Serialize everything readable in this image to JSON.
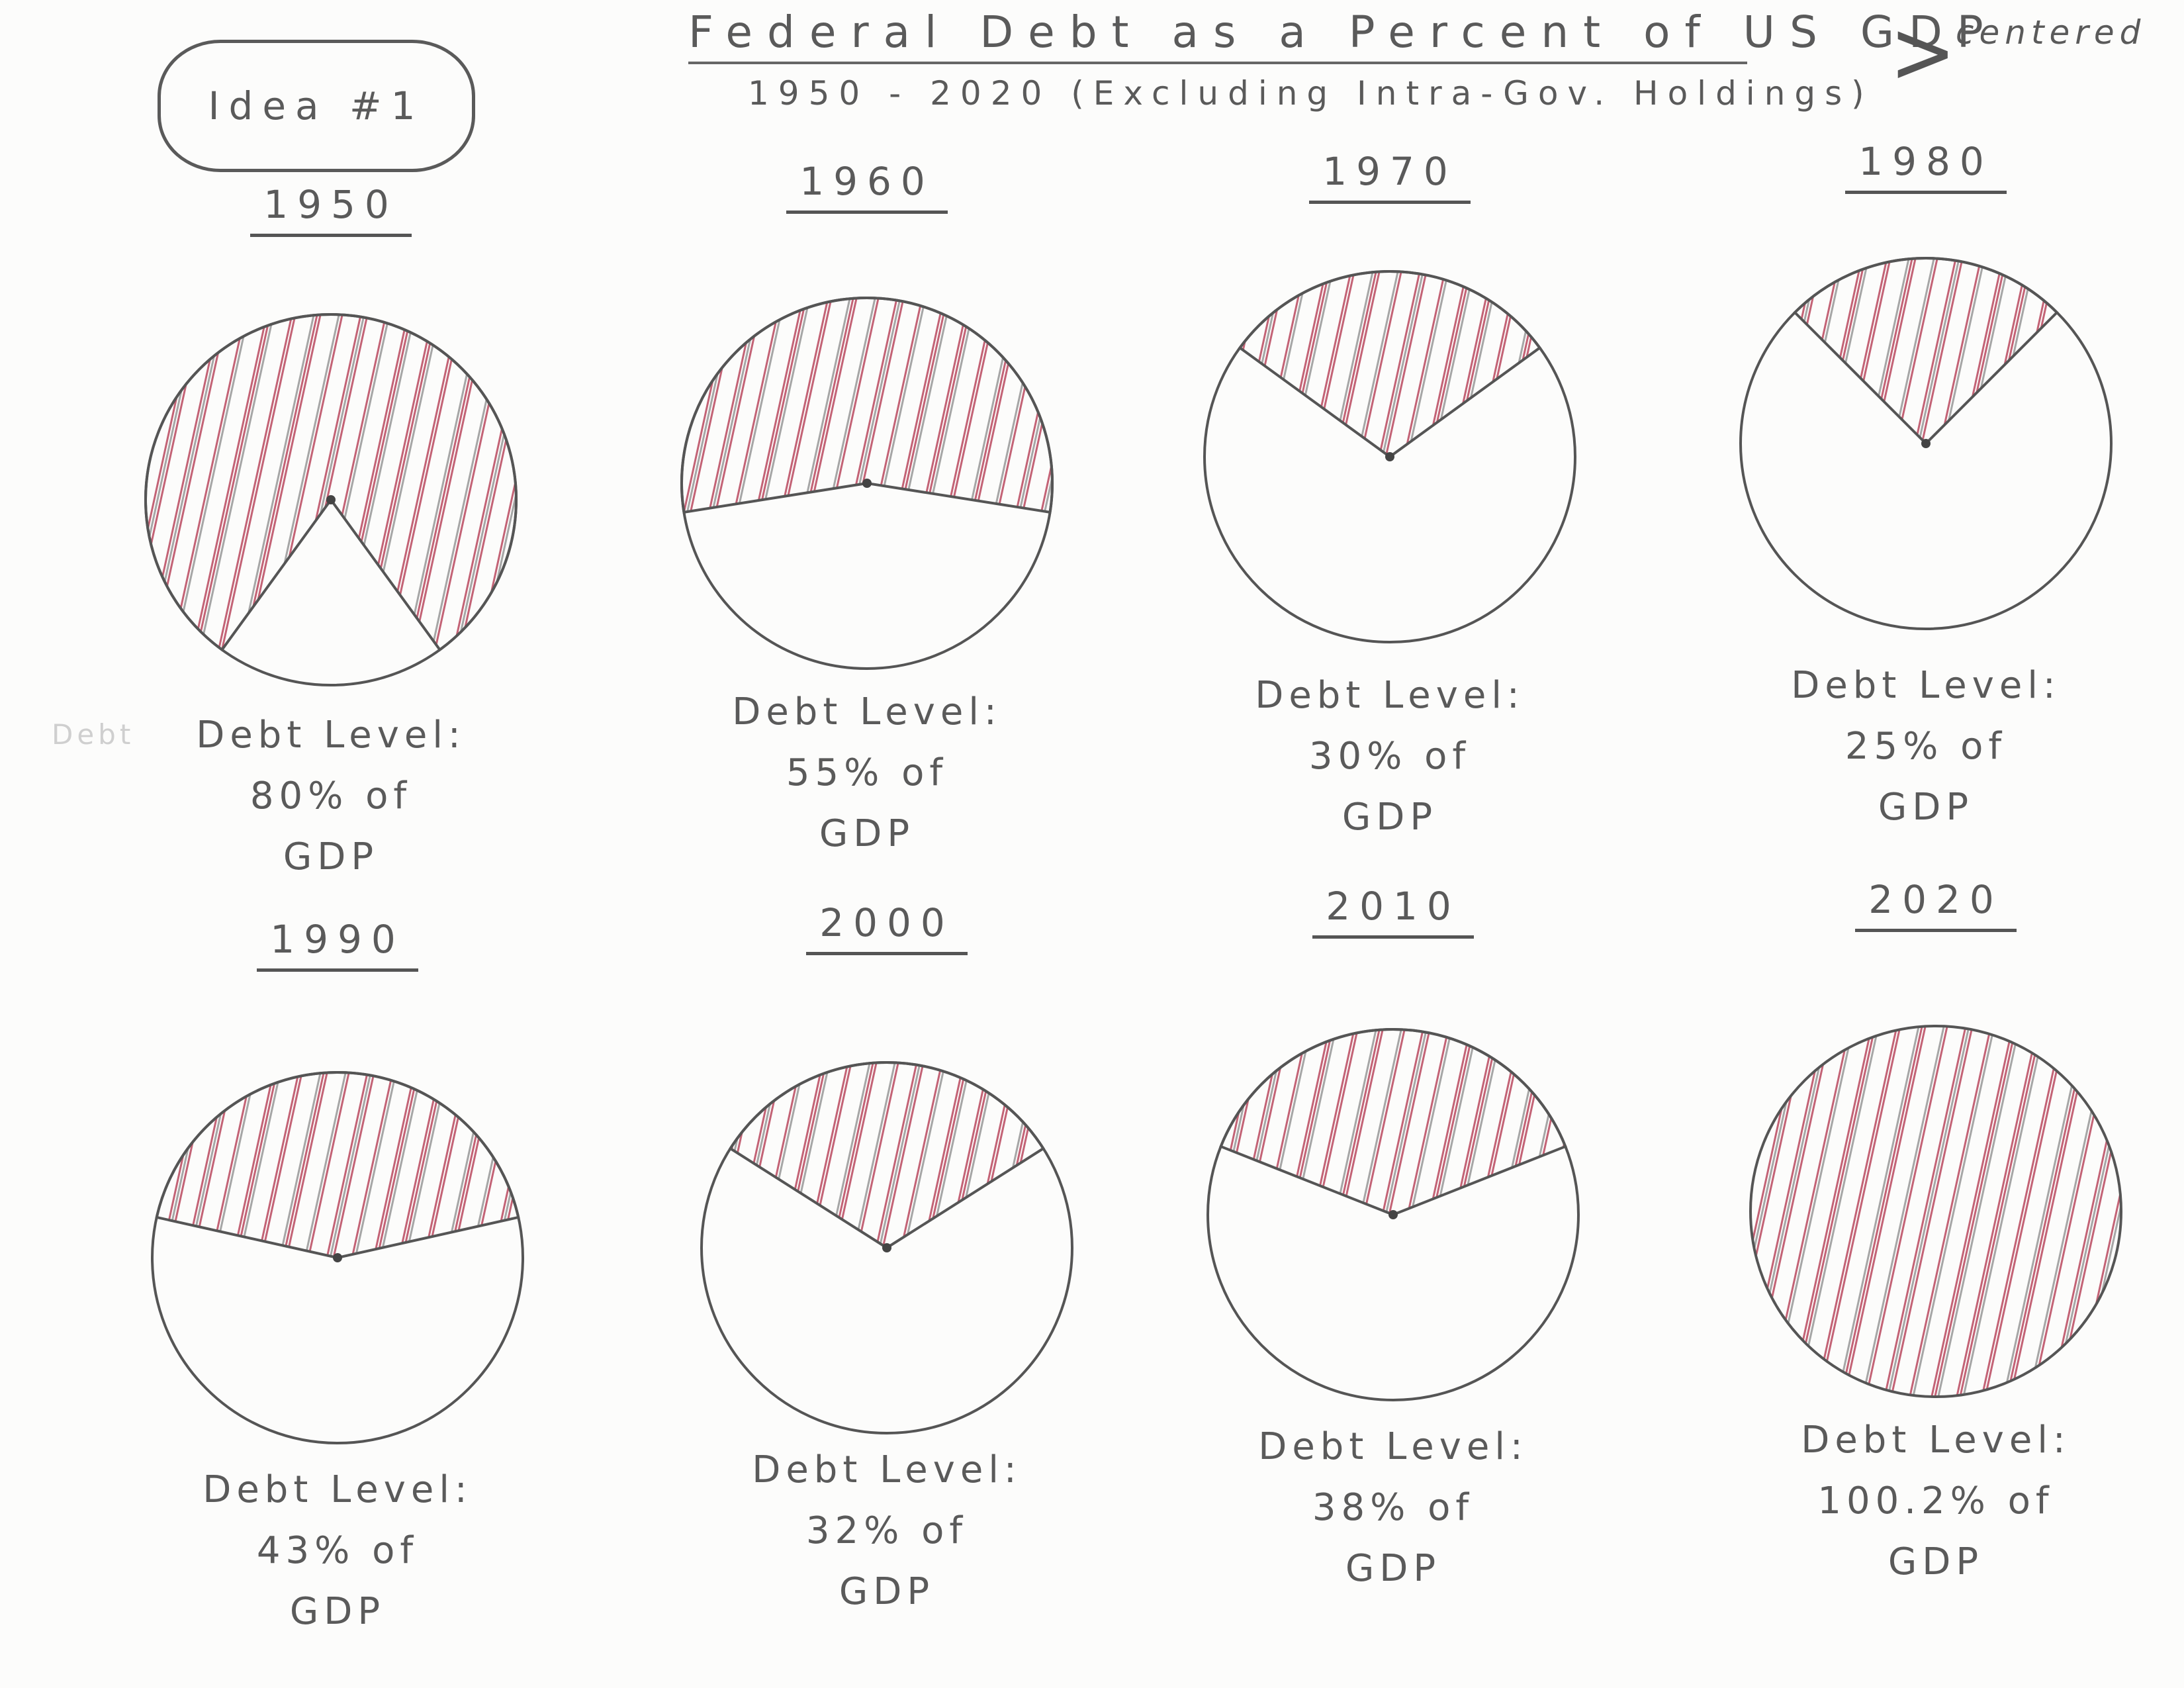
{
  "idea_tag": "Idea #1",
  "title": "Federal Debt as a Percent of US GDP",
  "subtitle": "1950 - 2020 (Excluding Intra-Gov. Holdings)",
  "side_note": "centered",
  "stray_text": "Debt",
  "chart_data": {
    "type": "pie",
    "title": "Federal Debt as a Percent of US GDP",
    "subtitle": "1950 - 2020 (Excluding Intra-Gov. Holdings)",
    "shaded_color": "#b0304a",
    "shaded_color_2": "#8a8a8a",
    "outline_color": "#555555",
    "charts": [
      {
        "year": "1950",
        "value": 80,
        "label_line1": "Debt Level:",
        "label_line2": "80% of",
        "label_line3": "GDP"
      },
      {
        "year": "1960",
        "value": 55,
        "label_line1": "Debt Level:",
        "label_line2": "55% of",
        "label_line3": "GDP"
      },
      {
        "year": "1970",
        "value": 30,
        "label_line1": "Debt Level:",
        "label_line2": "30% of",
        "label_line3": "GDP"
      },
      {
        "year": "1980",
        "value": 25,
        "label_line1": "Debt Level:",
        "label_line2": "25% of",
        "label_line3": "GDP"
      },
      {
        "year": "1990",
        "value": 43,
        "label_line1": "Debt Level:",
        "label_line2": "43% of",
        "label_line3": "GDP"
      },
      {
        "year": "2000",
        "value": 32,
        "label_line1": "Debt Level:",
        "label_line2": "32% of",
        "label_line3": "GDP"
      },
      {
        "year": "2010",
        "value": 38,
        "label_line1": "Debt Level:",
        "label_line2": "38% of",
        "label_line3": "GDP"
      },
      {
        "year": "2020",
        "value": 100.2,
        "label_line1": "Debt Level:",
        "label_line2": "100.2% of",
        "label_line3": "GDP"
      }
    ]
  }
}
